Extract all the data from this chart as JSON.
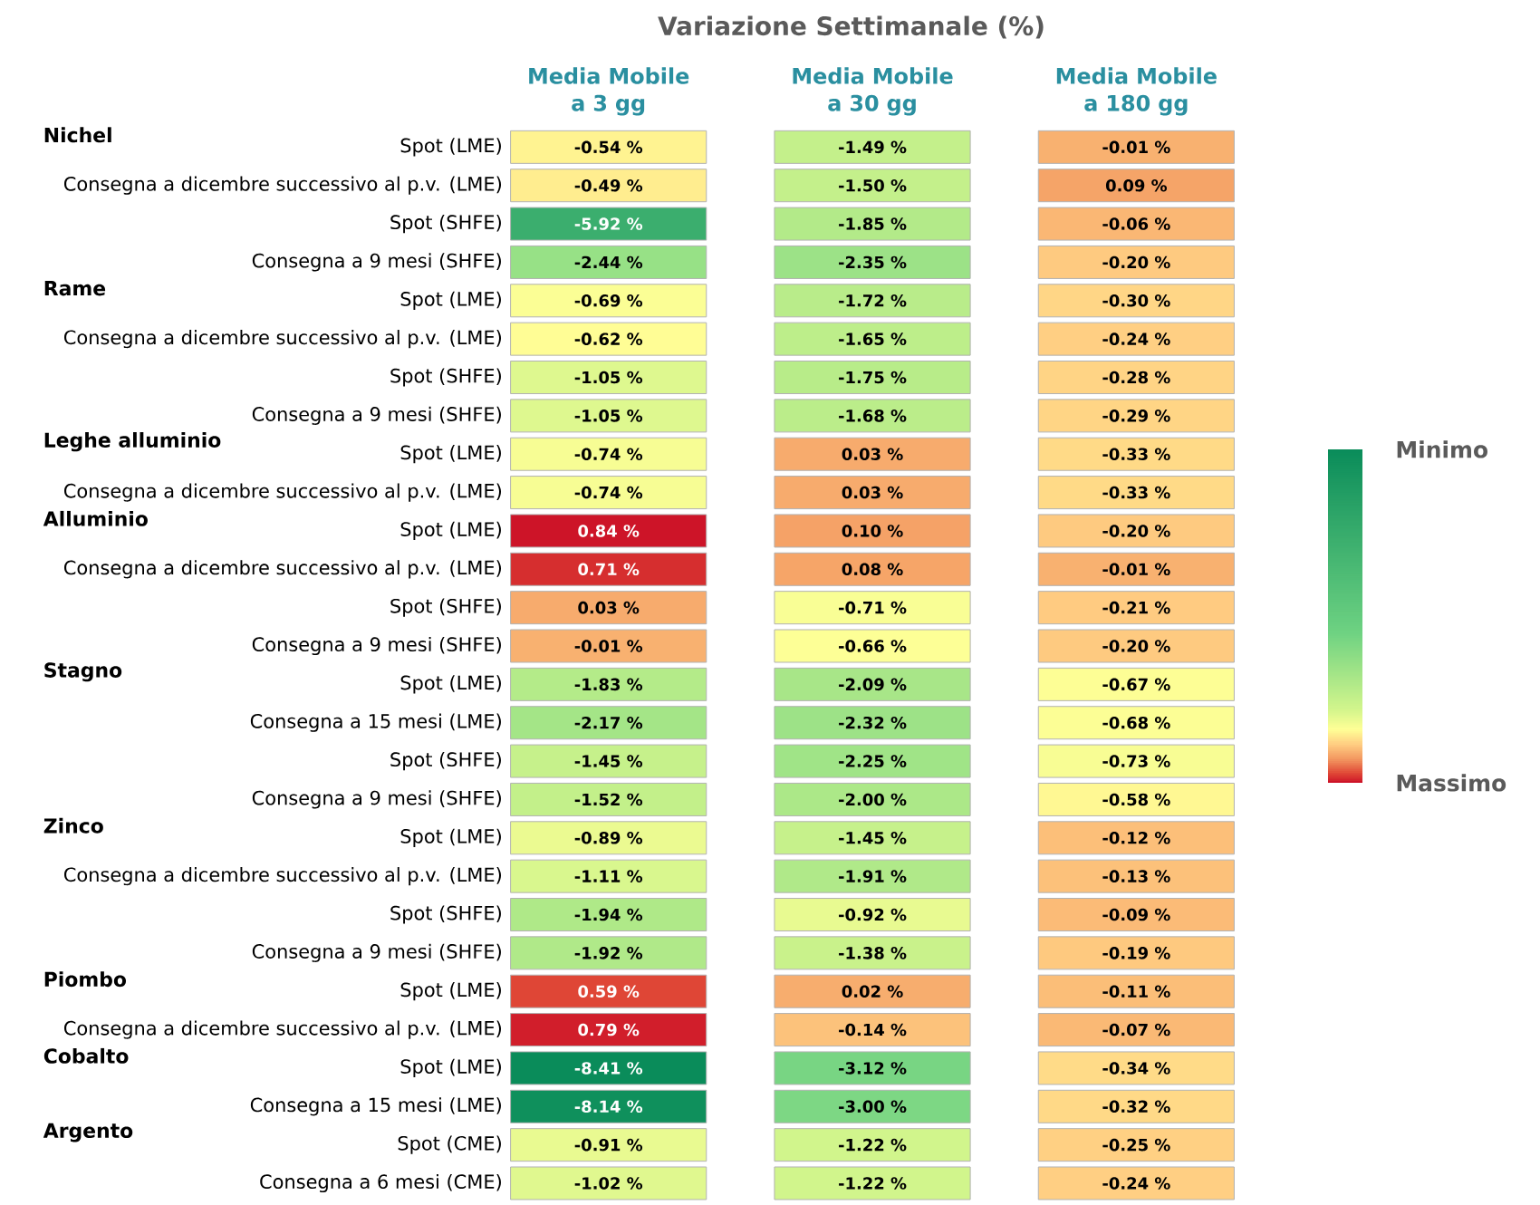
{
  "chart_data": {
    "type": "heatmap",
    "title": "Variazione Settimanale (%)",
    "categories": [
      "Media Mobile a 3 gg",
      "Media Mobile a 30 gg",
      "Media Mobile a 180 gg"
    ],
    "y_categories": [
      "Spot (LME)",
      "Consegna a dicembre successivo al p.v. (LME)",
      "Spot (SHFE)",
      "Consegna a 9 mesi (SHFE)",
      "Spot (LME)",
      "Consegna a dicembre successivo al p.v. (LME)",
      "Spot (SHFE)",
      "Consegna a 9 mesi (SHFE)",
      "Spot (LME)",
      "Consegna a dicembre successivo al p.v. (LME)",
      "Spot (LME)",
      "Consegna a dicembre successivo al p.v. (LME)",
      "Spot (SHFE)",
      "Consegna a 9 mesi (SHFE)",
      "Spot (LME)",
      "Consegna a 15 mesi (LME)",
      "Spot (SHFE)",
      "Consegna a 9 mesi (SHFE)",
      "Spot (LME)",
      "Consegna a dicembre successivo al p.v. (LME)",
      "Spot (SHFE)",
      "Consegna a 9 mesi (SHFE)",
      "Spot (LME)",
      "Consegna a dicembre successivo al p.v. (LME)",
      "Spot (LME)",
      "Consegna a 15 mesi (LME)",
      "Spot (CME)",
      "Consegna a 6 mesi (CME)"
    ],
    "y2_categories": [
      "Nichel",
      null,
      null,
      null,
      "Rame",
      null,
      null,
      null,
      "Leghe alluminio",
      null,
      "Alluminio",
      null,
      null,
      null,
      "Stagno",
      null,
      null,
      null,
      "Zinco",
      null,
      null,
      null,
      "Piombo",
      null,
      "Cobalto",
      null,
      "Argento",
      null
    ],
    "cells": [
      [
        -0.54,
        -1.49,
        -0.01
      ],
      [
        -0.49,
        -1.5,
        0.09
      ],
      [
        -5.92,
        -1.85,
        -0.06
      ],
      [
        -2.44,
        -2.35,
        -0.2
      ],
      [
        -0.69,
        -1.72,
        -0.3
      ],
      [
        -0.62,
        -1.65,
        -0.24
      ],
      [
        -1.05,
        -1.75,
        -0.28
      ],
      [
        -1.05,
        -1.68,
        -0.29
      ],
      [
        -0.74,
        0.03,
        -0.33
      ],
      [
        -0.74,
        0.03,
        -0.33
      ],
      [
        0.84,
        0.1,
        -0.2
      ],
      [
        0.71,
        0.08,
        -0.01
      ],
      [
        0.03,
        -0.71,
        -0.21
      ],
      [
        -0.01,
        -0.66,
        -0.2
      ],
      [
        -1.83,
        -2.09,
        -0.67
      ],
      [
        -2.17,
        -2.32,
        -0.68
      ],
      [
        -1.45,
        -2.25,
        -0.73
      ],
      [
        -1.52,
        -2.0,
        -0.58
      ],
      [
        -0.89,
        -1.45,
        -0.12
      ],
      [
        -1.11,
        -1.91,
        -0.13
      ],
      [
        -1.94,
        -0.92,
        -0.09
      ],
      [
        -1.92,
        -1.38,
        -0.19
      ],
      [
        0.59,
        0.02,
        -0.11
      ],
      [
        0.79,
        -0.14,
        -0.07
      ],
      [
        -8.41,
        -3.12,
        -0.34
      ],
      [
        -8.14,
        -3.0,
        -0.32
      ],
      [
        -0.91,
        -1.22,
        -0.25
      ],
      [
        -1.02,
        -1.22,
        -0.24
      ]
    ],
    "cell_labels": [
      [
        "-0.54 %",
        "-1.49 %",
        "-0.01 %"
      ],
      [
        "-0.49 %",
        "-1.50 %",
        "0.09 %"
      ],
      [
        "-5.92 %",
        "-1.85 %",
        "-0.06 %"
      ],
      [
        "-2.44 %",
        "-2.35 %",
        "-0.20 %"
      ],
      [
        "-0.69 %",
        "-1.72 %",
        "-0.30 %"
      ],
      [
        "-0.62 %",
        "-1.65 %",
        "-0.24 %"
      ],
      [
        "-1.05 %",
        "-1.75 %",
        "-0.28 %"
      ],
      [
        "-1.05 %",
        "-1.68 %",
        "-0.29 %"
      ],
      [
        "-0.74 %",
        "0.03 %",
        "-0.33 %"
      ],
      [
        "-0.74 %",
        "0.03 %",
        "-0.33 %"
      ],
      [
        "0.84 %",
        "0.10 %",
        "-0.20 %"
      ],
      [
        "0.71 %",
        "0.08 %",
        "-0.01 %"
      ],
      [
        "0.03 %",
        "-0.71 %",
        "-0.21 %"
      ],
      [
        "-0.01 %",
        "-0.66 %",
        "-0.20 %"
      ],
      [
        "-1.83 %",
        "-2.09 %",
        "-0.67 %"
      ],
      [
        "-2.17 %",
        "-2.32 %",
        "-0.68 %"
      ],
      [
        "-1.45 %",
        "-2.25 %",
        "-0.73 %"
      ],
      [
        "-1.52 %",
        "-2.00 %",
        "-0.58 %"
      ],
      [
        "-0.89 %",
        "-1.45 %",
        "-0.12 %"
      ],
      [
        "-1.11 %",
        "-1.91 %",
        "-0.13 %"
      ],
      [
        "-1.94 %",
        "-0.92 %",
        "-0.09 %"
      ],
      [
        "-1.92 %",
        "-1.38 %",
        "-0.19 %"
      ],
      [
        "0.59 %",
        "0.02 %",
        "-0.11 %"
      ],
      [
        "0.79 %",
        "-0.14 %",
        "-0.07 %"
      ],
      [
        "-8.41 %",
        "-3.12 %",
        "-0.34 %"
      ],
      [
        "-8.14 %",
        "-3.00 %",
        "-0.32 %"
      ],
      [
        "-0.91 %",
        "-1.22 %",
        "-0.25 %"
      ],
      [
        "-1.02 %",
        "-1.22 %",
        "-0.24 %"
      ]
    ],
    "clim": [
      -8.41,
      0.84
    ],
    "cticks": [
      {
        "value": -8.41,
        "label": "Minimo"
      },
      {
        "value": 0.84,
        "label": "Massimo"
      }
    ]
  }
}
